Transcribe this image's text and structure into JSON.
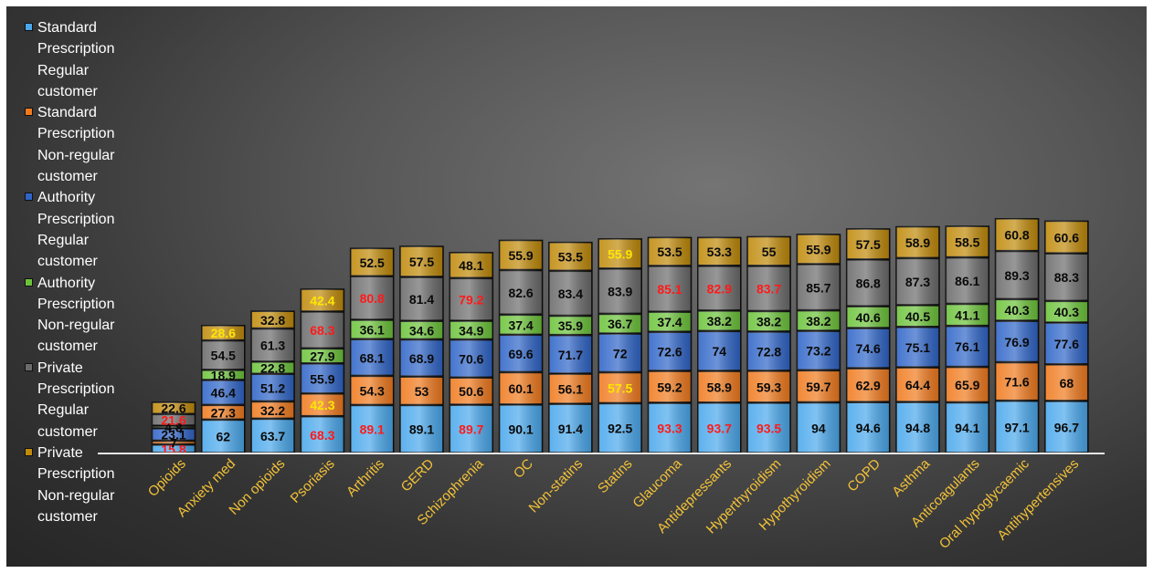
{
  "chart_data": {
    "type": "bar",
    "stacked": true,
    "title": "",
    "xlabel": "",
    "ylabel": "",
    "grid": false,
    "legend_position": "left",
    "categories": [
      "Opioids",
      "Anxiety med",
      "Non opioids",
      "Psoriasis",
      "Arthritis",
      "GERD",
      "Schizophrenia",
      "OC",
      "Non-statins",
      "Statins",
      "Glaucoma",
      "Antidepressants",
      "Hyperthyroidism",
      "Hypothyroidism",
      "COPD",
      "Asthma",
      "Anticoagulants",
      "Oral hypoglycaemic",
      "Antihypertensives"
    ],
    "series": [
      {
        "name": "Standard Prescription Regular customer",
        "color": "#4aa8ec",
        "values": [
          15.8,
          62,
          63.7,
          68.3,
          89.1,
          89.1,
          89.7,
          90.1,
          91.4,
          92.5,
          93.3,
          93.7,
          93.5,
          94,
          94.6,
          94.8,
          94.1,
          97.1,
          96.7
        ]
      },
      {
        "name": "Standard Prescription Non-regular customer",
        "color": "#f07a1e",
        "values": [
          7,
          27.3,
          32.2,
          42.3,
          54.3,
          53,
          50.6,
          60.1,
          56.1,
          57.5,
          59.2,
          58.9,
          59.3,
          59.7,
          62.9,
          64.4,
          65.9,
          71.6,
          68
        ]
      },
      {
        "name": "Authority Prescription Regular customer",
        "color": "#2f65c8",
        "values": [
          23.1,
          46.4,
          51.2,
          55.9,
          68.1,
          68.9,
          70.6,
          69.6,
          71.7,
          72,
          72.6,
          74,
          72.8,
          73.2,
          74.6,
          75.1,
          76.1,
          76.9,
          77.6
        ]
      },
      {
        "name": "Authority Prescription Non-regular customer",
        "color": "#6cc33a",
        "values": [
          4.8,
          18.9,
          22.8,
          27.9,
          36.1,
          34.6,
          34.9,
          37.4,
          35.9,
          36.7,
          37.4,
          38.2,
          38.2,
          38.2,
          40.6,
          40.5,
          41.1,
          40.3,
          40.3
        ]
      },
      {
        "name": "Private Prescription Regular customer",
        "color": "#6b6b6b",
        "values": [
          21.6,
          54.5,
          61.3,
          68.3,
          80.8,
          81.4,
          79.2,
          82.6,
          83.4,
          83.9,
          85.1,
          82.9,
          83.7,
          85.7,
          86.8,
          87.3,
          86.1,
          89.3,
          88.3
        ]
      },
      {
        "name": "Private Prescription Non-regular customer",
        "color": "#c08a0a",
        "values": [
          22.6,
          28.6,
          32.8,
          42.4,
          52.5,
          57.5,
          48.1,
          55.9,
          53.5,
          55.9,
          53.5,
          53.3,
          55,
          55.9,
          57.5,
          58.9,
          58.5,
          60.8,
          60.6
        ]
      }
    ],
    "label_colors": [
      [
        "red",
        "black",
        "black",
        "red",
        "red",
        "black",
        "red",
        "black",
        "black",
        "black",
        "red",
        "red",
        "red",
        "black",
        "black",
        "black",
        "black",
        "black",
        "black"
      ],
      [
        "black",
        "black",
        "black",
        "yellow",
        "black",
        "black",
        "black",
        "black",
        "black",
        "yellow",
        "black",
        "black",
        "black",
        "black",
        "black",
        "black",
        "black",
        "black",
        "black"
      ],
      [
        "black",
        "black",
        "black",
        "black",
        "black",
        "black",
        "black",
        "black",
        "black",
        "black",
        "black",
        "black",
        "black",
        "black",
        "black",
        "black",
        "black",
        "black",
        "black"
      ],
      [
        "black",
        "black",
        "black",
        "black",
        "black",
        "black",
        "black",
        "black",
        "black",
        "black",
        "black",
        "black",
        "black",
        "black",
        "black",
        "black",
        "black",
        "black",
        "black"
      ],
      [
        "red",
        "black",
        "black",
        "red",
        "red",
        "black",
        "red",
        "black",
        "black",
        "black",
        "red",
        "red",
        "red",
        "black",
        "black",
        "black",
        "black",
        "black",
        "black"
      ],
      [
        "black",
        "yellow",
        "black",
        "yellow",
        "black",
        "black",
        "black",
        "black",
        "black",
        "yellow",
        "black",
        "black",
        "black",
        "black",
        "black",
        "black",
        "black",
        "black",
        "black"
      ]
    ],
    "tick_label_color": "#f3c238"
  }
}
